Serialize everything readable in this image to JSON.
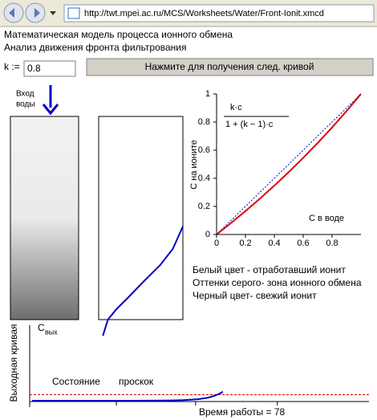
{
  "browser": {
    "url": "http://twt.mpei.ac.ru/MCS/Worksheets/Water/Front-Ionit.xmcd"
  },
  "header": {
    "title": "Математическая модель процесса ионного обмена",
    "subtitle": "Анализ движения фронта фильтрования"
  },
  "controls": {
    "k_label": "k :=",
    "k_value": "0.8",
    "button": "Нажмите для получения след. кривой"
  },
  "column": {
    "label": [
      "Вход",
      "воды"
    ]
  },
  "equilibrium_chart": {
    "type": "line",
    "formula": {
      "numerator": "k·c",
      "denominator": "1 + (k − 1)·c"
    },
    "y_label": "С на ионите",
    "x_label": "С в воде",
    "x": [
      0,
      0.1,
      0.2,
      0.3,
      0.4,
      0.5,
      0.6,
      0.7,
      0.8,
      0.9,
      1
    ],
    "series": [
      {
        "color": "#e00000",
        "dotted": false,
        "values": [
          0,
          0.0816,
          0.1667,
          0.2553,
          0.3478,
          0.4444,
          0.5455,
          0.6512,
          0.7619,
          0.878,
          1
        ]
      },
      {
        "color": "#0000cc",
        "dotted": true,
        "values": [
          0,
          0.1,
          0.2,
          0.3,
          0.4,
          0.5,
          0.6,
          0.7,
          0.8,
          0.9,
          1
        ]
      }
    ],
    "xlim": [
      0,
      1
    ],
    "ylim": [
      0,
      1
    ],
    "xticks": [
      0,
      0.2,
      0.4,
      0.6,
      0.8
    ],
    "yticks": [
      0,
      0.2,
      0.4,
      0.6,
      0.8,
      1
    ]
  },
  "profile_chart": {
    "type": "line",
    "color": "#0000cc",
    "x": [
      0.05,
      0.11,
      0.21,
      0.35,
      0.54,
      0.73,
      0.88,
      1
    ],
    "values": [
      0.007,
      0.08,
      0.127,
      0.18,
      0.255,
      0.327,
      0.4,
      0.502
    ],
    "xlim": [
      0,
      1
    ],
    "ylim": [
      0,
      1
    ]
  },
  "legend": {
    "lines": [
      "Белый цвет - отработавший ионит",
      "Оттенки серого- зона ионного обмена",
      "Черный цвет- свежий ионит"
    ]
  },
  "outlet_chart": {
    "type": "line",
    "color": "#0000cc",
    "y_label": "Выходная кривая",
    "c_label": {
      "base": "C",
      "sub": "вых"
    },
    "x": [
      1,
      20,
      40,
      55,
      62,
      68,
      72,
      75,
      77,
      78
    ],
    "values": [
      0,
      0,
      0,
      0.003,
      0.008,
      0.02,
      0.04,
      0.07,
      0.1,
      0.12
    ],
    "threshold": 0.08,
    "threshold_color": "#cc0000",
    "xlim": [
      0,
      137
    ],
    "ylim": [
      0,
      1
    ],
    "xticks": [
      35,
      67,
      100
    ],
    "annotations": [
      "Состояние",
      "проскок"
    ],
    "time_label": "Время работы = 78"
  }
}
